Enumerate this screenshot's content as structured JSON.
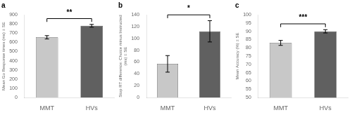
{
  "chart_data": [
    {
      "type": "bar",
      "title": "a",
      "categories": [
        "MMT",
        "HVs"
      ],
      "values": [
        655,
        780
      ],
      "errors": [
        18,
        15
      ],
      "y_label": "Mean Go Response times (ms) ± SE",
      "ylim": [
        0,
        900
      ],
      "yticks": [
        0,
        100,
        200,
        300,
        400,
        500,
        600,
        700,
        800,
        900
      ],
      "annotations": [
        "**"
      ],
      "colors": [
        "#c8c8c8",
        "#606060"
      ],
      "grid": false
    },
    {
      "type": "bar",
      "title": "b",
      "categories": [
        "MMT",
        "HVs"
      ],
      "values": [
        57,
        112
      ],
      "errors": [
        14,
        18
      ],
      "y_label": "Stop RT difference: Choice minus Instructed\n(ms) ± SE",
      "ylim": [
        0,
        140
      ],
      "yticks": [
        0,
        20,
        40,
        60,
        80,
        100,
        120,
        140
      ],
      "annotations": [
        "*"
      ],
      "colors": [
        "#c8c8c8",
        "#606060"
      ],
      "grid": false
    },
    {
      "type": "bar",
      "title": "c",
      "categories": [
        "MMT",
        "HVs"
      ],
      "values": [
        83,
        90
      ],
      "errors": [
        1.5,
        1.0
      ],
      "y_label": "Mean Accuracy (%) ± SE",
      "ylim": [
        50,
        100
      ],
      "yticks": [
        50,
        55,
        60,
        65,
        70,
        75,
        80,
        85,
        90,
        95,
        100
      ],
      "annotations": [
        "***"
      ],
      "colors": [
        "#c8c8c8",
        "#606060"
      ],
      "grid": false
    }
  ]
}
